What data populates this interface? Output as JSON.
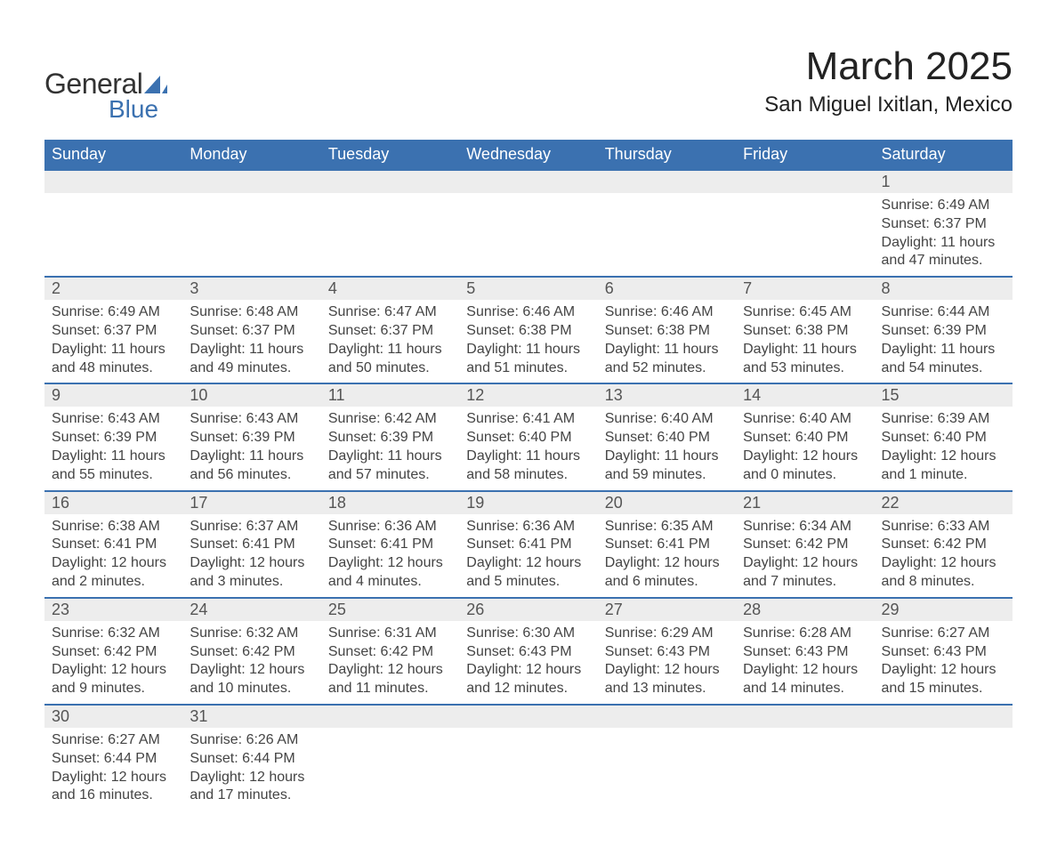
{
  "logo": {
    "general": "General",
    "blue": "Blue"
  },
  "title": "March 2025",
  "location": "San Miguel Ixitlan, Mexico",
  "header_color": "#3b71b0",
  "daynum_bg": "#ededed",
  "columns": [
    "Sunday",
    "Monday",
    "Tuesday",
    "Wednesday",
    "Thursday",
    "Friday",
    "Saturday"
  ],
  "weeks": [
    {
      "nums": [
        "",
        "",
        "",
        "",
        "",
        "",
        "1"
      ],
      "cells": [
        null,
        null,
        null,
        null,
        null,
        null,
        {
          "sunrise": "Sunrise: 6:49 AM",
          "sunset": "Sunset: 6:37 PM",
          "day1": "Daylight: 11 hours",
          "day2": "and 47 minutes."
        }
      ]
    },
    {
      "nums": [
        "2",
        "3",
        "4",
        "5",
        "6",
        "7",
        "8"
      ],
      "cells": [
        {
          "sunrise": "Sunrise: 6:49 AM",
          "sunset": "Sunset: 6:37 PM",
          "day1": "Daylight: 11 hours",
          "day2": "and 48 minutes."
        },
        {
          "sunrise": "Sunrise: 6:48 AM",
          "sunset": "Sunset: 6:37 PM",
          "day1": "Daylight: 11 hours",
          "day2": "and 49 minutes."
        },
        {
          "sunrise": "Sunrise: 6:47 AM",
          "sunset": "Sunset: 6:37 PM",
          "day1": "Daylight: 11 hours",
          "day2": "and 50 minutes."
        },
        {
          "sunrise": "Sunrise: 6:46 AM",
          "sunset": "Sunset: 6:38 PM",
          "day1": "Daylight: 11 hours",
          "day2": "and 51 minutes."
        },
        {
          "sunrise": "Sunrise: 6:46 AM",
          "sunset": "Sunset: 6:38 PM",
          "day1": "Daylight: 11 hours",
          "day2": "and 52 minutes."
        },
        {
          "sunrise": "Sunrise: 6:45 AM",
          "sunset": "Sunset: 6:38 PM",
          "day1": "Daylight: 11 hours",
          "day2": "and 53 minutes."
        },
        {
          "sunrise": "Sunrise: 6:44 AM",
          "sunset": "Sunset: 6:39 PM",
          "day1": "Daylight: 11 hours",
          "day2": "and 54 minutes."
        }
      ]
    },
    {
      "nums": [
        "9",
        "10",
        "11",
        "12",
        "13",
        "14",
        "15"
      ],
      "cells": [
        {
          "sunrise": "Sunrise: 6:43 AM",
          "sunset": "Sunset: 6:39 PM",
          "day1": "Daylight: 11 hours",
          "day2": "and 55 minutes."
        },
        {
          "sunrise": "Sunrise: 6:43 AM",
          "sunset": "Sunset: 6:39 PM",
          "day1": "Daylight: 11 hours",
          "day2": "and 56 minutes."
        },
        {
          "sunrise": "Sunrise: 6:42 AM",
          "sunset": "Sunset: 6:39 PM",
          "day1": "Daylight: 11 hours",
          "day2": "and 57 minutes."
        },
        {
          "sunrise": "Sunrise: 6:41 AM",
          "sunset": "Sunset: 6:40 PM",
          "day1": "Daylight: 11 hours",
          "day2": "and 58 minutes."
        },
        {
          "sunrise": "Sunrise: 6:40 AM",
          "sunset": "Sunset: 6:40 PM",
          "day1": "Daylight: 11 hours",
          "day2": "and 59 minutes."
        },
        {
          "sunrise": "Sunrise: 6:40 AM",
          "sunset": "Sunset: 6:40 PM",
          "day1": "Daylight: 12 hours",
          "day2": "and 0 minutes."
        },
        {
          "sunrise": "Sunrise: 6:39 AM",
          "sunset": "Sunset: 6:40 PM",
          "day1": "Daylight: 12 hours",
          "day2": "and 1 minute."
        }
      ]
    },
    {
      "nums": [
        "16",
        "17",
        "18",
        "19",
        "20",
        "21",
        "22"
      ],
      "cells": [
        {
          "sunrise": "Sunrise: 6:38 AM",
          "sunset": "Sunset: 6:41 PM",
          "day1": "Daylight: 12 hours",
          "day2": "and 2 minutes."
        },
        {
          "sunrise": "Sunrise: 6:37 AM",
          "sunset": "Sunset: 6:41 PM",
          "day1": "Daylight: 12 hours",
          "day2": "and 3 minutes."
        },
        {
          "sunrise": "Sunrise: 6:36 AM",
          "sunset": "Sunset: 6:41 PM",
          "day1": "Daylight: 12 hours",
          "day2": "and 4 minutes."
        },
        {
          "sunrise": "Sunrise: 6:36 AM",
          "sunset": "Sunset: 6:41 PM",
          "day1": "Daylight: 12 hours",
          "day2": "and 5 minutes."
        },
        {
          "sunrise": "Sunrise: 6:35 AM",
          "sunset": "Sunset: 6:41 PM",
          "day1": "Daylight: 12 hours",
          "day2": "and 6 minutes."
        },
        {
          "sunrise": "Sunrise: 6:34 AM",
          "sunset": "Sunset: 6:42 PM",
          "day1": "Daylight: 12 hours",
          "day2": "and 7 minutes."
        },
        {
          "sunrise": "Sunrise: 6:33 AM",
          "sunset": "Sunset: 6:42 PM",
          "day1": "Daylight: 12 hours",
          "day2": "and 8 minutes."
        }
      ]
    },
    {
      "nums": [
        "23",
        "24",
        "25",
        "26",
        "27",
        "28",
        "29"
      ],
      "cells": [
        {
          "sunrise": "Sunrise: 6:32 AM",
          "sunset": "Sunset: 6:42 PM",
          "day1": "Daylight: 12 hours",
          "day2": "and 9 minutes."
        },
        {
          "sunrise": "Sunrise: 6:32 AM",
          "sunset": "Sunset: 6:42 PM",
          "day1": "Daylight: 12 hours",
          "day2": "and 10 minutes."
        },
        {
          "sunrise": "Sunrise: 6:31 AM",
          "sunset": "Sunset: 6:42 PM",
          "day1": "Daylight: 12 hours",
          "day2": "and 11 minutes."
        },
        {
          "sunrise": "Sunrise: 6:30 AM",
          "sunset": "Sunset: 6:43 PM",
          "day1": "Daylight: 12 hours",
          "day2": "and 12 minutes."
        },
        {
          "sunrise": "Sunrise: 6:29 AM",
          "sunset": "Sunset: 6:43 PM",
          "day1": "Daylight: 12 hours",
          "day2": "and 13 minutes."
        },
        {
          "sunrise": "Sunrise: 6:28 AM",
          "sunset": "Sunset: 6:43 PM",
          "day1": "Daylight: 12 hours",
          "day2": "and 14 minutes."
        },
        {
          "sunrise": "Sunrise: 6:27 AM",
          "sunset": "Sunset: 6:43 PM",
          "day1": "Daylight: 12 hours",
          "day2": "and 15 minutes."
        }
      ]
    },
    {
      "nums": [
        "30",
        "31",
        "",
        "",
        "",
        "",
        ""
      ],
      "cells": [
        {
          "sunrise": "Sunrise: 6:27 AM",
          "sunset": "Sunset: 6:44 PM",
          "day1": "Daylight: 12 hours",
          "day2": "and 16 minutes."
        },
        {
          "sunrise": "Sunrise: 6:26 AM",
          "sunset": "Sunset: 6:44 PM",
          "day1": "Daylight: 12 hours",
          "day2": "and 17 minutes."
        },
        null,
        null,
        null,
        null,
        null
      ]
    }
  ]
}
